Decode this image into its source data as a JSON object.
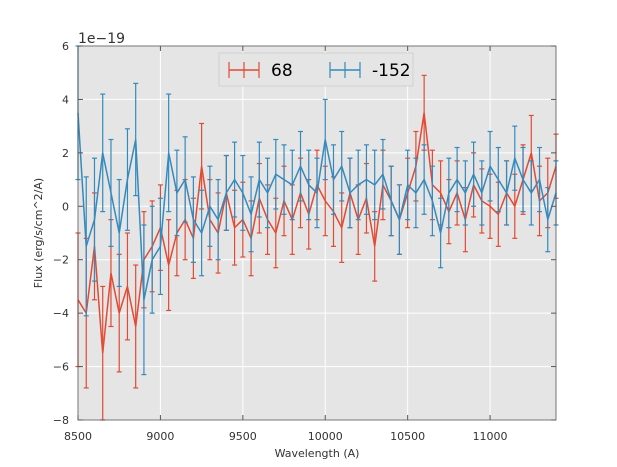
{
  "chart_data": {
    "type": "line",
    "xlabel": "Wavelength (A)",
    "ylabel": "Flux (erg/s/cm^2/A)",
    "y_offset_label": "1e−19",
    "y_scale": 1e-19,
    "xlim": [
      8500,
      11400
    ],
    "ylim": [
      -8,
      6
    ],
    "x_ticks": [
      8500,
      9000,
      9500,
      10000,
      10500,
      11000
    ],
    "x_tick_labels": [
      "8500",
      "9000",
      "9500",
      "10000",
      "10500",
      "11000"
    ],
    "y_ticks": [
      -8,
      -6,
      -4,
      -2,
      0,
      2,
      4,
      6
    ],
    "y_tick_labels": [
      "−8",
      "−6",
      "−4",
      "−2",
      "0",
      "2",
      "4",
      "6"
    ],
    "grid": true,
    "legend_position": "top-center",
    "series": [
      {
        "name": "68",
        "color": "#E24A33",
        "x": [
          8500,
          8550,
          8600,
          8650,
          8700,
          8750,
          8800,
          8850,
          8900,
          8950,
          9000,
          9050,
          9100,
          9150,
          9200,
          9250,
          9300,
          9350,
          9400,
          9450,
          9500,
          9550,
          9600,
          9650,
          9700,
          9750,
          9800,
          9850,
          9900,
          9950,
          10000,
          10050,
          10100,
          10150,
          10200,
          10250,
          10300,
          10350,
          10400,
          10450,
          10500,
          10550,
          10600,
          10650,
          10700,
          10750,
          10800,
          10850,
          10900,
          10950,
          11000,
          11050,
          11100,
          11150,
          11200,
          11250,
          11300,
          11350,
          11400
        ],
        "y": [
          -3.5,
          -4.0,
          -1.5,
          -5.5,
          -2.5,
          -4.0,
          -3.0,
          -4.5,
          -2.0,
          -1.5,
          -0.8,
          -2.2,
          -1.0,
          -0.5,
          -1.2,
          1.5,
          -0.5,
          -1.0,
          0.5,
          -0.8,
          -0.5,
          -1.2,
          0.3,
          -0.5,
          -1.0,
          0.2,
          -0.5,
          0.5,
          -0.3,
          0.8,
          0.2,
          -0.2,
          -0.8,
          0.5,
          -0.5,
          0.3,
          -1.5,
          0.8,
          0.2,
          -0.5,
          0.5,
          1.5,
          3.5,
          0.8,
          0.5,
          -0.2,
          0.5,
          -0.5,
          0.8,
          0.2,
          0.0,
          -0.3,
          0.5,
          0.0,
          1.0,
          2.0,
          0.2,
          0.5,
          1.5
        ],
        "err": [
          2.5,
          2.8,
          2.0,
          2.5,
          2.0,
          2.2,
          2.0,
          2.3,
          1.8,
          1.7,
          1.6,
          1.7,
          1.6,
          1.5,
          1.5,
          1.6,
          1.5,
          1.5,
          1.4,
          1.4,
          1.4,
          1.4,
          1.3,
          1.3,
          1.3,
          1.3,
          1.3,
          1.3,
          1.3,
          1.3,
          1.3,
          1.3,
          1.3,
          1.3,
          1.3,
          1.3,
          1.3,
          1.3,
          1.3,
          1.3,
          1.3,
          1.3,
          1.4,
          1.3,
          1.2,
          1.2,
          1.2,
          1.2,
          1.2,
          1.2,
          1.2,
          1.2,
          1.2,
          1.2,
          1.3,
          1.4,
          1.3,
          1.3,
          1.2
        ]
      },
      {
        "name": "-152",
        "color": "#348ABD",
        "x": [
          8500,
          8550,
          8600,
          8650,
          8700,
          8750,
          8800,
          8850,
          8900,
          8950,
          9000,
          9050,
          9100,
          9150,
          9200,
          9250,
          9300,
          9350,
          9400,
          9450,
          9500,
          9550,
          9600,
          9650,
          9700,
          9750,
          9800,
          9850,
          9900,
          9950,
          10000,
          10050,
          10100,
          10150,
          10200,
          10250,
          10300,
          10350,
          10400,
          10450,
          10500,
          10550,
          10600,
          10650,
          10700,
          10750,
          10800,
          10850,
          10900,
          10950,
          11000,
          11050,
          11100,
          11150,
          11200,
          11250,
          11300,
          11350,
          11400
        ],
        "y": [
          3.5,
          -1.5,
          -0.5,
          2.0,
          0.5,
          -1.0,
          1.0,
          2.5,
          -3.5,
          -2.0,
          -1.5,
          2.0,
          0.5,
          1.0,
          -0.5,
          -1.0,
          0.0,
          -0.5,
          0.5,
          1.0,
          0.5,
          -0.3,
          1.0,
          0.5,
          1.2,
          1.0,
          0.8,
          1.5,
          0.8,
          0.5,
          2.5,
          1.0,
          1.5,
          0.5,
          0.8,
          1.0,
          0.8,
          1.2,
          0.2,
          -0.5,
          0.8,
          0.5,
          1.0,
          0.2,
          -1.0,
          0.5,
          1.0,
          0.5,
          1.2,
          0.5,
          1.5,
          1.0,
          0.5,
          1.8,
          1.0,
          0.5,
          1.0,
          -0.5,
          0.5
        ],
        "err": [
          2.5,
          2.6,
          2.3,
          2.2,
          2.0,
          2.0,
          1.9,
          2.1,
          2.8,
          2.0,
          1.8,
          2.2,
          1.6,
          1.6,
          1.6,
          1.6,
          1.5,
          1.5,
          1.4,
          1.4,
          1.4,
          1.4,
          1.4,
          1.3,
          1.3,
          1.3,
          1.3,
          1.3,
          1.3,
          1.3,
          1.5,
          1.3,
          1.3,
          1.3,
          1.3,
          1.3,
          1.3,
          1.3,
          1.3,
          1.3,
          1.3,
          1.3,
          1.3,
          1.3,
          1.3,
          1.3,
          1.2,
          1.2,
          1.2,
          1.2,
          1.3,
          1.2,
          1.2,
          1.2,
          1.2,
          1.2,
          1.2,
          1.2,
          1.2
        ]
      }
    ]
  }
}
